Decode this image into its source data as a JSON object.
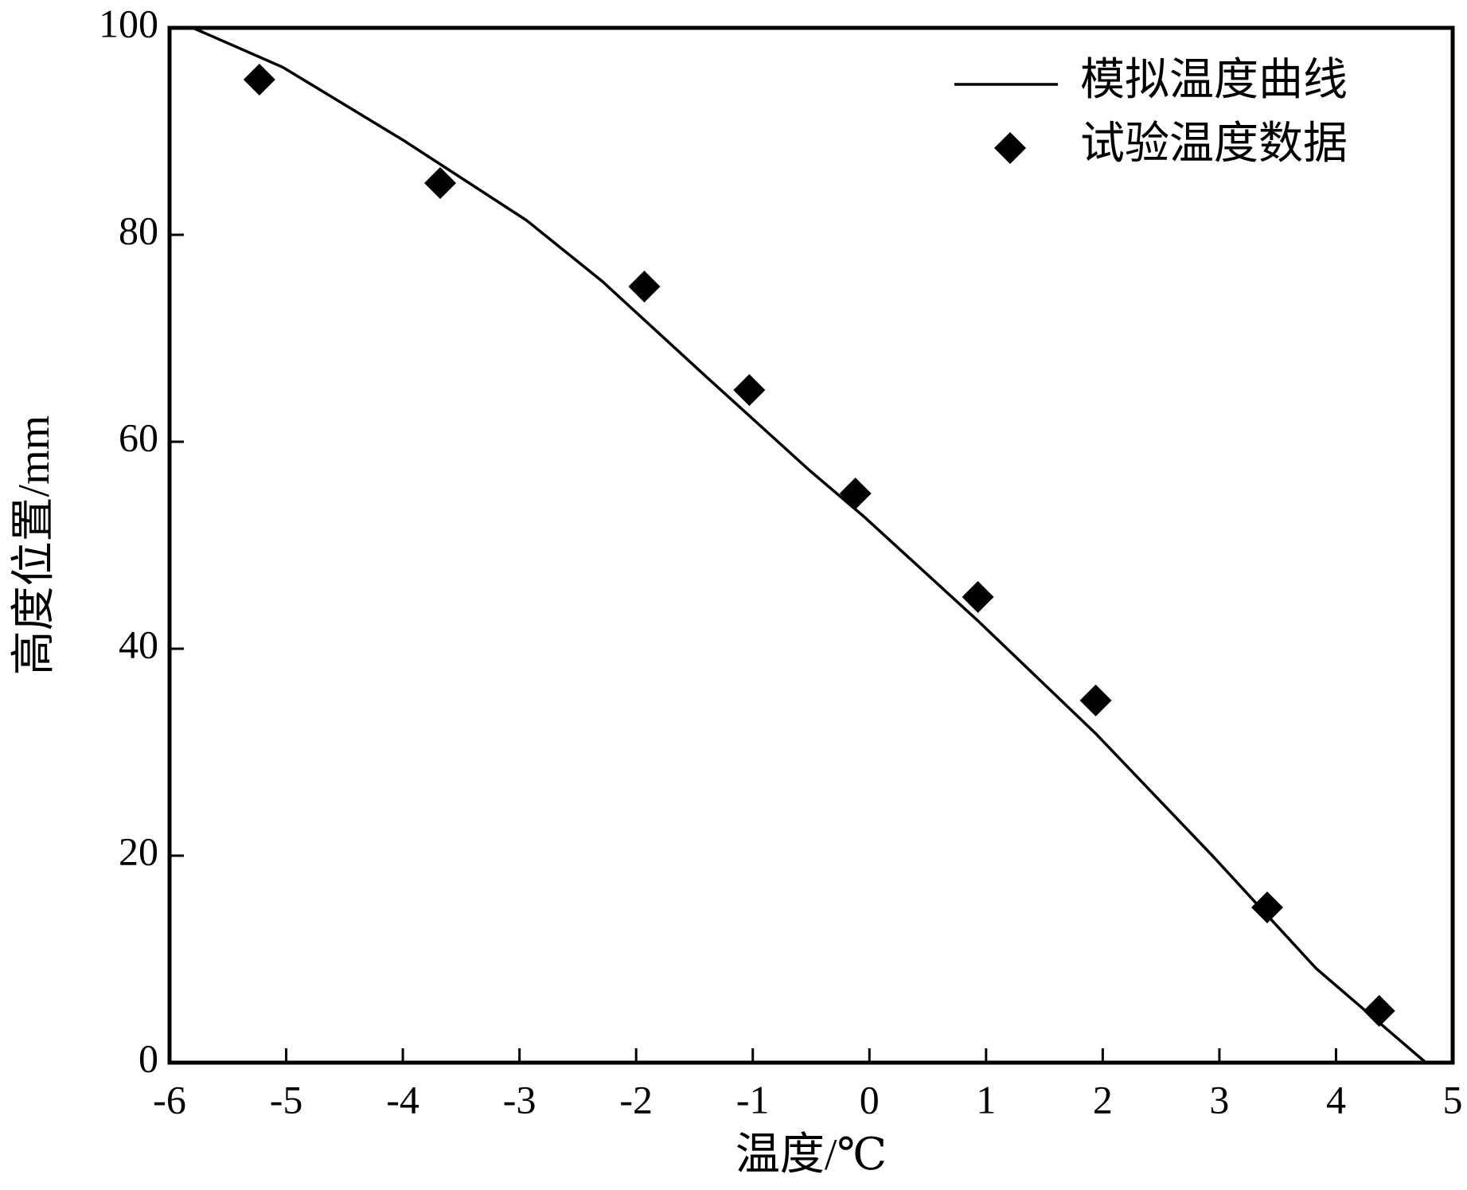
{
  "chart_data": {
    "type": "line",
    "xlabel": "温度/℃",
    "ylabel": "高度位置/mm",
    "xlim": [
      -6,
      5
    ],
    "ylim": [
      0,
      100
    ],
    "xticks": [
      -6,
      -5,
      -4,
      -3,
      -2,
      -1,
      0,
      1,
      2,
      3,
      4,
      5
    ],
    "yticks": [
      0,
      20,
      40,
      60,
      80,
      100
    ],
    "legend": "upper right",
    "series": [
      {
        "name": "模拟温度曲线",
        "color": "#000000",
        "mode": "line",
        "x": [
          -5.8,
          -5.03,
          -3.99,
          -2.94,
          -2.29,
          -1.41,
          -0.52,
          -0.04,
          0.93,
          1.94,
          2.94,
          3.83,
          4.77
        ],
        "values": [
          100,
          96.2,
          89.1,
          81.4,
          75.5,
          66.4,
          57.3,
          52.7,
          42.7,
          31.8,
          20,
          9.1,
          0
        ]
      },
      {
        "name": "试验温度数据",
        "color": "#000000",
        "mode": "markers",
        "marker": "diamond",
        "x": [
          -5.23,
          -3.68,
          -1.93,
          -1.03,
          -0.12,
          0.93,
          1.94,
          3.41,
          4.37
        ],
        "values": [
          95,
          85,
          75,
          65,
          55,
          45,
          35,
          15,
          5
        ]
      }
    ]
  }
}
